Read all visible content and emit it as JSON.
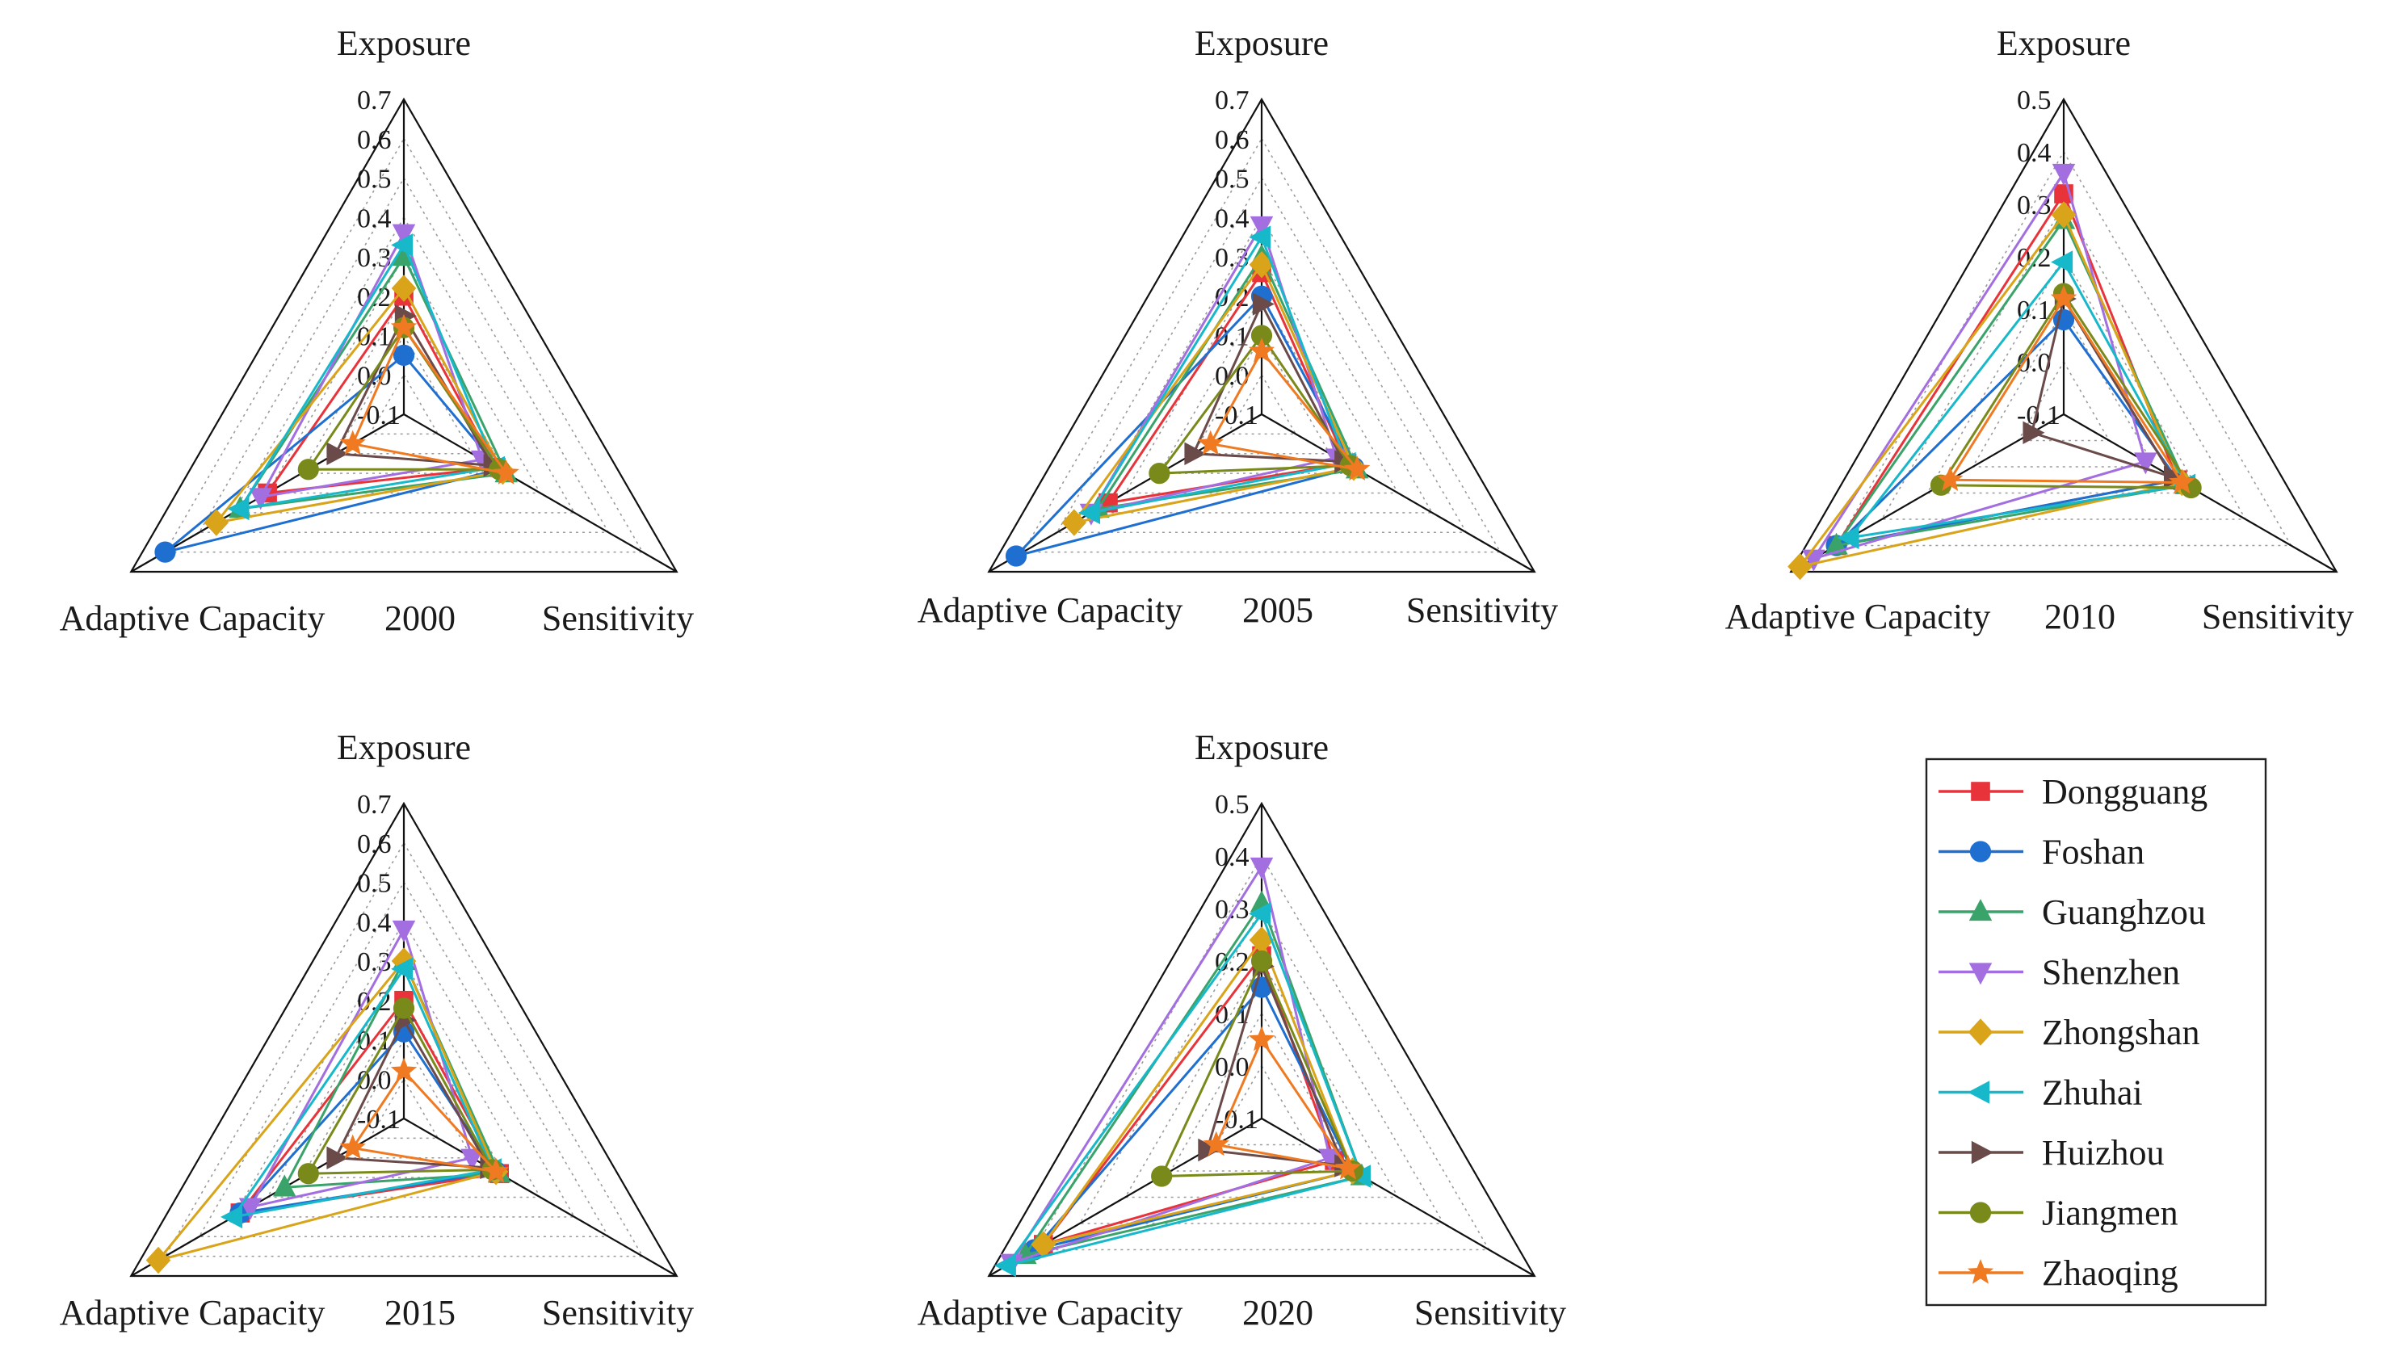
{
  "colors": {
    "Dongguang": "#e8333a",
    "Foshan": "#1f6fd1",
    "Guanghzou": "#3aa36a",
    "Shenzhen": "#a36ee0",
    "Zhongshan": "#d9a419",
    "Zhuhai": "#17b8c9",
    "Huizhou": "#6b4a4a",
    "Jiangmen": "#7a8a1a",
    "Zhaoqing": "#ef7a22"
  },
  "markers": {
    "Dongguang": "square",
    "Foshan": "circle",
    "Guanghzou": "triangle-up",
    "Shenzhen": "triangle-down",
    "Zhongshan": "diamond",
    "Zhuhai": "triangle-left",
    "Huizhou": "triangle-right",
    "Jiangmen": "circle",
    "Zhaoqing": "star"
  },
  "legend": {
    "items": [
      "Dongguang",
      "Foshan",
      "Guanghzou",
      "Shenzhen",
      "Zhongshan",
      "Zhuhai",
      "Huizhou",
      "Jiangmen",
      "Zhaoqing"
    ]
  },
  "chart_data": [
    {
      "type": "radar",
      "year_label": "2000",
      "axes": [
        "Exposure",
        "Sensitivity",
        "Adaptive Capacity"
      ],
      "ticks": [
        "-0.1",
        "0.0",
        "0.1",
        "0.2",
        "0.3",
        "0.4",
        "0.5",
        "0.6",
        "0.7"
      ],
      "range": [
        -0.1,
        0.7
      ],
      "grid": true,
      "series": [
        {
          "name": "Dongguang",
          "values": [
            0.2,
            0.17,
            0.3
          ]
        },
        {
          "name": "Foshan",
          "values": [
            0.05,
            0.18,
            0.6
          ]
        },
        {
          "name": "Guanghzou",
          "values": [
            0.3,
            0.2,
            0.38
          ]
        },
        {
          "name": "Shenzhen",
          "values": [
            0.36,
            0.13,
            0.32
          ]
        },
        {
          "name": "Zhongshan",
          "values": [
            0.22,
            0.19,
            0.45
          ]
        },
        {
          "name": "Zhuhai",
          "values": [
            0.33,
            0.17,
            0.38
          ]
        },
        {
          "name": "Huizhou",
          "values": [
            0.15,
            0.16,
            0.1
          ]
        },
        {
          "name": "Jiangmen",
          "values": [
            0.12,
            0.18,
            0.18
          ]
        },
        {
          "name": "Zhaoqing",
          "values": [
            0.12,
            0.2,
            0.05
          ]
        }
      ]
    },
    {
      "type": "radar",
      "year_label": "2005",
      "axes": [
        "Exposure",
        "Sensitivity",
        "Adaptive Capacity"
      ],
      "ticks": [
        "-0.1",
        "0.0",
        "0.1",
        "0.2",
        "0.3",
        "0.4",
        "0.5",
        "0.6",
        "0.7"
      ],
      "range": [
        -0.1,
        0.7
      ],
      "grid": true,
      "series": [
        {
          "name": "Dongguang",
          "values": [
            0.26,
            0.15,
            0.35
          ]
        },
        {
          "name": "Foshan",
          "values": [
            0.2,
            0.17,
            0.62
          ]
        },
        {
          "name": "Guanghzou",
          "values": [
            0.3,
            0.18,
            0.38
          ]
        },
        {
          "name": "Shenzhen",
          "values": [
            0.38,
            0.12,
            0.4
          ]
        },
        {
          "name": "Zhongshan",
          "values": [
            0.28,
            0.17,
            0.45
          ]
        },
        {
          "name": "Zhuhai",
          "values": [
            0.35,
            0.15,
            0.4
          ]
        },
        {
          "name": "Huizhou",
          "values": [
            0.18,
            0.14,
            0.1
          ]
        },
        {
          "name": "Jiangmen",
          "values": [
            0.1,
            0.16,
            0.2
          ]
        },
        {
          "name": "Zhaoqing",
          "values": [
            0.06,
            0.18,
            0.05
          ]
        }
      ]
    },
    {
      "type": "radar",
      "year_label": "2010",
      "axes": [
        "Exposure",
        "Sensitivity",
        "Adaptive Capacity"
      ],
      "ticks": [
        "-0.1",
        "0.0",
        "0.1",
        "0.2",
        "0.3",
        "0.4",
        "0.5"
      ],
      "range": [
        -0.1,
        0.5
      ],
      "grid": true,
      "series": [
        {
          "name": "Dongguang",
          "values": [
            0.32,
            0.15,
            0.4
          ]
        },
        {
          "name": "Foshan",
          "values": [
            0.08,
            0.15,
            0.4
          ]
        },
        {
          "name": "Guanghzou",
          "values": [
            0.27,
            0.17,
            0.4
          ]
        },
        {
          "name": "Shenzhen",
          "values": [
            0.36,
            0.08,
            0.45
          ]
        },
        {
          "name": "Zhongshan",
          "values": [
            0.28,
            0.16,
            0.48
          ]
        },
        {
          "name": "Zhuhai",
          "values": [
            0.19,
            0.17,
            0.37
          ]
        },
        {
          "name": "Huizhou",
          "values": [
            0.12,
            0.14,
            -0.03
          ]
        },
        {
          "name": "Jiangmen",
          "values": [
            0.13,
            0.18,
            0.17
          ]
        },
        {
          "name": "Zhaoqing",
          "values": [
            0.12,
            0.16,
            0.15
          ]
        }
      ]
    },
    {
      "type": "radar",
      "year_label": "2015",
      "axes": [
        "Exposure",
        "Sensitivity",
        "Adaptive Capacity"
      ],
      "ticks": [
        "-0.1",
        "0.0",
        "0.1",
        "0.2",
        "0.3",
        "0.4",
        "0.5",
        "0.6",
        "0.7"
      ],
      "range": [
        -0.1,
        0.7
      ],
      "grid": true,
      "series": [
        {
          "name": "Dongguang",
          "values": [
            0.2,
            0.18,
            0.38
          ]
        },
        {
          "name": "Foshan",
          "values": [
            0.12,
            0.17,
            0.38
          ]
        },
        {
          "name": "Guanghzou",
          "values": [
            0.3,
            0.18,
            0.25
          ]
        },
        {
          "name": "Shenzhen",
          "values": [
            0.38,
            0.1,
            0.35
          ]
        },
        {
          "name": "Zhongshan",
          "values": [
            0.3,
            0.17,
            0.62
          ]
        },
        {
          "name": "Zhuhai",
          "values": [
            0.28,
            0.16,
            0.4
          ]
        },
        {
          "name": "Huizhou",
          "values": [
            0.15,
            0.15,
            0.1
          ]
        },
        {
          "name": "Jiangmen",
          "values": [
            0.18,
            0.16,
            0.18
          ]
        },
        {
          "name": "Zhaoqing",
          "values": [
            0.02,
            0.17,
            0.05
          ]
        }
      ]
    },
    {
      "type": "radar",
      "year_label": "2020",
      "axes": [
        "Exposure",
        "Sensitivity",
        "Adaptive Capacity"
      ],
      "ticks": [
        "-0.1",
        "0.0",
        "0.1",
        "0.2",
        "0.3",
        "0.4",
        "0.5"
      ],
      "range": [
        -0.1,
        0.5
      ],
      "grid": true,
      "series": [
        {
          "name": "Dongguang",
          "values": [
            0.21,
            0.06,
            0.38
          ]
        },
        {
          "name": "Foshan",
          "values": [
            0.15,
            0.1,
            0.4
          ]
        },
        {
          "name": "Guanghzou",
          "values": [
            0.31,
            0.12,
            0.42
          ]
        },
        {
          "name": "Shenzhen",
          "values": [
            0.38,
            0.05,
            0.45
          ]
        },
        {
          "name": "Zhongshan",
          "values": [
            0.24,
            0.1,
            0.38
          ]
        },
        {
          "name": "Zhuhai",
          "values": [
            0.29,
            0.12,
            0.46
          ]
        },
        {
          "name": "Huizhou",
          "values": [
            0.19,
            0.08,
            0.02
          ]
        },
        {
          "name": "Jiangmen",
          "values": [
            0.2,
            0.1,
            0.12
          ]
        },
        {
          "name": "Zhaoqing",
          "values": [
            0.05,
            0.09,
            0.0
          ]
        }
      ]
    }
  ]
}
